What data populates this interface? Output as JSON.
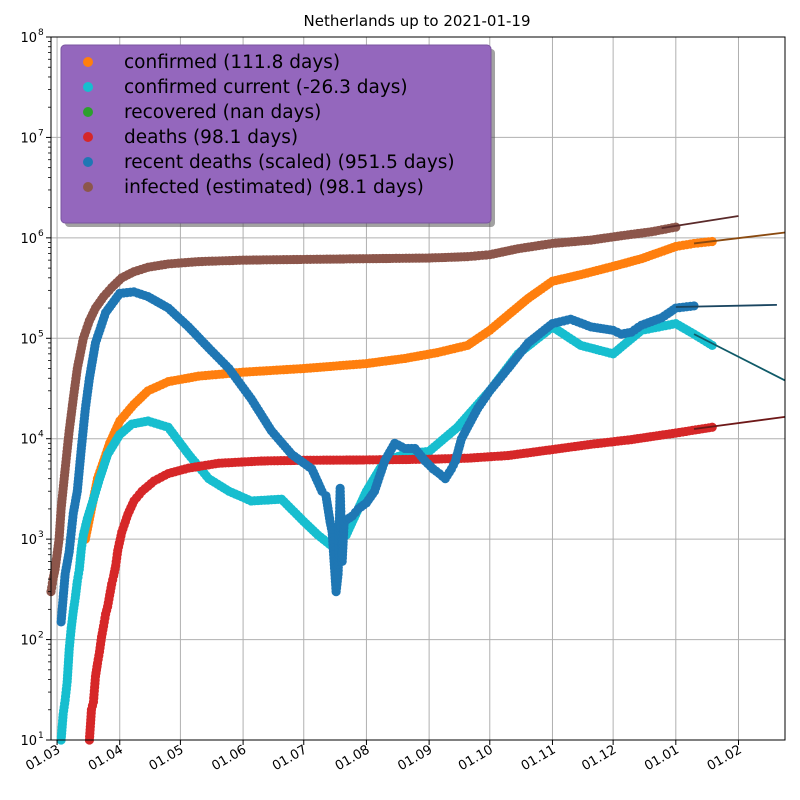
{
  "chart_data": {
    "type": "scatter",
    "title": "Netherlands up to 2021-01-19",
    "xlabel": "",
    "ylabel": "",
    "y_scale": "log",
    "ylim": [
      10,
      100000000
    ],
    "xlim": [
      "2020-02-27",
      "2021-02-24"
    ],
    "grid": true,
    "legend_placement": "top-left",
    "x_ticks": [
      {
        "date": "2020-03-01",
        "label": "01.03"
      },
      {
        "date": "2020-04-01",
        "label": "01.04"
      },
      {
        "date": "2020-05-01",
        "label": "01.05"
      },
      {
        "date": "2020-06-01",
        "label": "01.06"
      },
      {
        "date": "2020-07-01",
        "label": "01.07"
      },
      {
        "date": "2020-08-01",
        "label": "01.08"
      },
      {
        "date": "2020-09-01",
        "label": "01.09"
      },
      {
        "date": "2020-10-01",
        "label": "01.10"
      },
      {
        "date": "2020-11-01",
        "label": "01.11"
      },
      {
        "date": "2020-12-01",
        "label": "01.12"
      },
      {
        "date": "2021-01-01",
        "label": "01.01"
      },
      {
        "date": "2021-02-01",
        "label": "01.02"
      }
    ],
    "y_ticks": [
      {
        "value": 10,
        "base": "10",
        "exp": "1"
      },
      {
        "value": 100,
        "base": "10",
        "exp": "2"
      },
      {
        "value": 1000,
        "base": "10",
        "exp": "3"
      },
      {
        "value": 10000,
        "base": "10",
        "exp": "4"
      },
      {
        "value": 100000,
        "base": "10",
        "exp": "5"
      },
      {
        "value": 1000000,
        "base": "10",
        "exp": "6"
      },
      {
        "value": 10000000,
        "base": "10",
        "exp": "7"
      },
      {
        "value": 100000000,
        "base": "10",
        "exp": "8"
      }
    ],
    "legend": {
      "background": "#9467bd",
      "entries": [
        {
          "label": "confirmed (111.8 days)",
          "color": "#ff7f0e"
        },
        {
          "label": "confirmed current (-26.3 days)",
          "color": "#17becf"
        },
        {
          "label": "recovered (nan days)",
          "color": "#2ca02c"
        },
        {
          "label": "deaths (98.1 days)",
          "color": "#d62728"
        },
        {
          "label": "recent deaths (scaled) (951.5 days)",
          "color": "#1f77b4"
        },
        {
          "label": "infected (estimated) (98.1 days)",
          "color": "#8c564b"
        }
      ]
    },
    "series": [
      {
        "key": "infected",
        "color": "#8c564b",
        "points": [
          [
            "2020-02-27",
            300
          ],
          [
            "2020-02-28",
            400
          ],
          [
            "2020-02-29",
            500
          ],
          [
            "2020-03-02",
            1000
          ],
          [
            "2020-03-03",
            2000
          ],
          [
            "2020-03-05",
            5000
          ],
          [
            "2020-03-07",
            12000
          ],
          [
            "2020-03-09",
            25000
          ],
          [
            "2020-03-11",
            50000
          ],
          [
            "2020-03-14",
            100000
          ],
          [
            "2020-03-17",
            150000
          ],
          [
            "2020-03-20",
            200000
          ],
          [
            "2020-03-24",
            260000
          ],
          [
            "2020-03-28",
            320000
          ],
          [
            "2020-04-02",
            400000
          ],
          [
            "2020-04-08",
            460000
          ],
          [
            "2020-04-15",
            510000
          ],
          [
            "2020-04-25",
            550000
          ],
          [
            "2020-05-10",
            580000
          ],
          [
            "2020-06-01",
            600000
          ],
          [
            "2020-07-01",
            610000
          ],
          [
            "2020-08-01",
            620000
          ],
          [
            "2020-09-01",
            630000
          ],
          [
            "2020-09-20",
            650000
          ],
          [
            "2020-10-01",
            680000
          ],
          [
            "2020-10-15",
            780000
          ],
          [
            "2020-11-01",
            880000
          ],
          [
            "2020-11-20",
            950000
          ],
          [
            "2020-12-05",
            1050000
          ],
          [
            "2020-12-20",
            1150000
          ],
          [
            "2021-01-01",
            1280000
          ]
        ]
      },
      {
        "key": "confirmed",
        "color": "#ff7f0e",
        "points": [
          [
            "2020-03-15",
            1000
          ],
          [
            "2020-03-18",
            2000
          ],
          [
            "2020-03-21",
            4000
          ],
          [
            "2020-03-24",
            6000
          ],
          [
            "2020-03-27",
            9000
          ],
          [
            "2020-04-01",
            15000
          ],
          [
            "2020-04-08",
            22000
          ],
          [
            "2020-04-15",
            30000
          ],
          [
            "2020-04-25",
            37000
          ],
          [
            "2020-05-10",
            42000
          ],
          [
            "2020-06-01",
            46000
          ],
          [
            "2020-07-01",
            50000
          ],
          [
            "2020-08-01",
            56000
          ],
          [
            "2020-08-20",
            63000
          ],
          [
            "2020-09-05",
            72000
          ],
          [
            "2020-09-20",
            85000
          ],
          [
            "2020-10-01",
            120000
          ],
          [
            "2020-10-10",
            170000
          ],
          [
            "2020-10-20",
            250000
          ],
          [
            "2020-11-01",
            370000
          ],
          [
            "2020-11-15",
            430000
          ],
          [
            "2020-12-01",
            520000
          ],
          [
            "2020-12-15",
            620000
          ],
          [
            "2021-01-01",
            820000
          ],
          [
            "2021-01-10",
            880000
          ],
          [
            "2021-01-19",
            920000
          ]
        ]
      },
      {
        "key": "confirmed_current",
        "color": "#17becf",
        "points": [
          [
            "2020-03-03",
            10
          ],
          [
            "2020-03-04",
            18
          ],
          [
            "2020-03-05",
            25
          ],
          [
            "2020-03-06",
            38
          ],
          [
            "2020-03-07",
            80
          ],
          [
            "2020-03-08",
            130
          ],
          [
            "2020-03-09",
            190
          ],
          [
            "2020-03-10",
            260
          ],
          [
            "2020-03-11",
            380
          ],
          [
            "2020-03-12",
            500
          ],
          [
            "2020-03-13",
            800
          ],
          [
            "2020-03-14",
            1100
          ],
          [
            "2020-03-16",
            1600
          ],
          [
            "2020-03-19",
            2500
          ],
          [
            "2020-03-22",
            4000
          ],
          [
            "2020-03-26",
            7000
          ],
          [
            "2020-04-01",
            11000
          ],
          [
            "2020-04-07",
            14000
          ],
          [
            "2020-04-15",
            15000
          ],
          [
            "2020-04-25",
            13000
          ],
          [
            "2020-05-05",
            7000
          ],
          [
            "2020-05-15",
            4000
          ],
          [
            "2020-05-25",
            3000
          ],
          [
            "2020-06-05",
            2400
          ],
          [
            "2020-06-20",
            2500
          ],
          [
            "2020-07-01",
            1500
          ],
          [
            "2020-07-08",
            1100
          ],
          [
            "2020-07-15",
            850
          ],
          [
            "2020-07-22",
            1100
          ],
          [
            "2020-08-01",
            3000
          ],
          [
            "2020-08-10",
            6000
          ],
          [
            "2020-08-20",
            7000
          ],
          [
            "2020-09-01",
            7500
          ],
          [
            "2020-09-15",
            13000
          ],
          [
            "2020-10-01",
            30000
          ],
          [
            "2020-10-15",
            70000
          ],
          [
            "2020-11-01",
            130000
          ],
          [
            "2020-11-15",
            85000
          ],
          [
            "2020-12-01",
            70000
          ],
          [
            "2020-12-15",
            120000
          ],
          [
            "2021-01-01",
            140000
          ],
          [
            "2021-01-10",
            110000
          ],
          [
            "2021-01-19",
            85000
          ]
        ]
      },
      {
        "key": "deaths",
        "color": "#d62728",
        "points": [
          [
            "2020-03-17",
            10
          ],
          [
            "2020-03-18",
            20
          ],
          [
            "2020-03-19",
            24
          ],
          [
            "2020-03-20",
            43
          ],
          [
            "2020-03-21",
            58
          ],
          [
            "2020-03-22",
            76
          ],
          [
            "2020-03-23",
            106
          ],
          [
            "2020-03-24",
            136
          ],
          [
            "2020-03-25",
            179
          ],
          [
            "2020-03-26",
            213
          ],
          [
            "2020-03-27",
            276
          ],
          [
            "2020-03-28",
            356
          ],
          [
            "2020-03-29",
            434
          ],
          [
            "2020-03-30",
            546
          ],
          [
            "2020-03-31",
            771
          ],
          [
            "2020-04-02",
            1173
          ],
          [
            "2020-04-05",
            1766
          ],
          [
            "2020-04-08",
            2396
          ],
          [
            "2020-04-12",
            3000
          ],
          [
            "2020-04-18",
            3800
          ],
          [
            "2020-04-25",
            4500
          ],
          [
            "2020-05-05",
            5100
          ],
          [
            "2020-05-20",
            5700
          ],
          [
            "2020-06-10",
            6000
          ],
          [
            "2020-07-01",
            6100
          ],
          [
            "2020-08-01",
            6150
          ],
          [
            "2020-09-01",
            6250
          ],
          [
            "2020-09-20",
            6400
          ],
          [
            "2020-10-10",
            6800
          ],
          [
            "2020-11-01",
            7800
          ],
          [
            "2020-11-20",
            8800
          ],
          [
            "2020-12-10",
            9800
          ],
          [
            "2021-01-01",
            11400
          ],
          [
            "2021-01-19",
            13000
          ]
        ]
      },
      {
        "key": "recent_deaths",
        "color": "#1f77b4",
        "points": [
          [
            "2020-03-03",
            150
          ],
          [
            "2020-03-05",
            450
          ],
          [
            "2020-03-07",
            750
          ],
          [
            "2020-03-09",
            1800
          ],
          [
            "2020-03-11",
            3000
          ],
          [
            "2020-03-13",
            8000
          ],
          [
            "2020-03-15",
            20000
          ],
          [
            "2020-03-17",
            40000
          ],
          [
            "2020-03-20",
            90000
          ],
          [
            "2020-03-25",
            180000
          ],
          [
            "2020-04-01",
            280000
          ],
          [
            "2020-04-08",
            290000
          ],
          [
            "2020-04-15",
            260000
          ],
          [
            "2020-04-25",
            200000
          ],
          [
            "2020-05-05",
            130000
          ],
          [
            "2020-05-15",
            80000
          ],
          [
            "2020-05-25",
            50000
          ],
          [
            "2020-06-05",
            25000
          ],
          [
            "2020-06-15",
            12000
          ],
          [
            "2020-06-25",
            7000
          ],
          [
            "2020-07-05",
            5000
          ],
          [
            "2020-07-10",
            3000
          ],
          [
            "2020-07-12",
            2700
          ],
          [
            "2020-07-14",
            1500
          ],
          [
            "2020-07-15",
            1200
          ],
          [
            "2020-07-16",
            600
          ],
          [
            "2020-07-17",
            300
          ],
          [
            "2020-07-18",
            450
          ],
          [
            "2020-07-19",
            3200
          ],
          [
            "2020-07-20",
            600
          ],
          [
            "2020-07-21",
            1500
          ],
          [
            "2020-07-25",
            1700
          ],
          [
            "2020-07-28",
            2000
          ],
          [
            "2020-08-01",
            2300
          ],
          [
            "2020-08-05",
            3000
          ],
          [
            "2020-08-10",
            6000
          ],
          [
            "2020-08-15",
            9000
          ],
          [
            "2020-08-20",
            8000
          ],
          [
            "2020-08-25",
            8000
          ],
          [
            "2020-08-30",
            6000
          ],
          [
            "2020-09-03",
            5000
          ],
          [
            "2020-09-06",
            4500
          ],
          [
            "2020-09-09",
            4000
          ],
          [
            "2020-09-12",
            5000
          ],
          [
            "2020-09-14",
            6000
          ],
          [
            "2020-09-17",
            10000
          ],
          [
            "2020-09-20",
            13000
          ],
          [
            "2020-09-25",
            20000
          ],
          [
            "2020-10-01",
            30000
          ],
          [
            "2020-10-10",
            50000
          ],
          [
            "2020-10-20",
            90000
          ],
          [
            "2020-11-01",
            140000
          ],
          [
            "2020-11-10",
            155000
          ],
          [
            "2020-11-20",
            130000
          ],
          [
            "2020-12-01",
            120000
          ],
          [
            "2020-12-05",
            110000
          ],
          [
            "2020-12-10",
            115000
          ],
          [
            "2020-12-15",
            135000
          ],
          [
            "2020-12-25",
            160000
          ],
          [
            "2021-01-01",
            200000
          ],
          [
            "2021-01-10",
            210000
          ]
        ]
      }
    ],
    "trend_lines": [
      {
        "key": "infected",
        "color": "#5a2a2a",
        "from": [
          "2020-12-25",
          1250000
        ],
        "to": [
          "2021-02-01",
          1650000
        ]
      },
      {
        "key": "confirmed",
        "color": "#8a4a10",
        "from": [
          "2021-01-10",
          880000
        ],
        "to": [
          "2021-02-24",
          1130000
        ]
      },
      {
        "key": "confirmed_current",
        "color": "#0f5a68",
        "from": [
          "2021-01-10",
          110000
        ],
        "to": [
          "2021-02-24",
          38000
        ]
      },
      {
        "key": "deaths",
        "color": "#6e1818",
        "from": [
          "2021-01-10",
          12500
        ],
        "to": [
          "2021-02-24",
          16500
        ]
      },
      {
        "key": "recent_deaths",
        "color": "#1a4560",
        "from": [
          "2021-01-01",
          205000
        ],
        "to": [
          "2021-02-20",
          215000
        ]
      }
    ]
  }
}
